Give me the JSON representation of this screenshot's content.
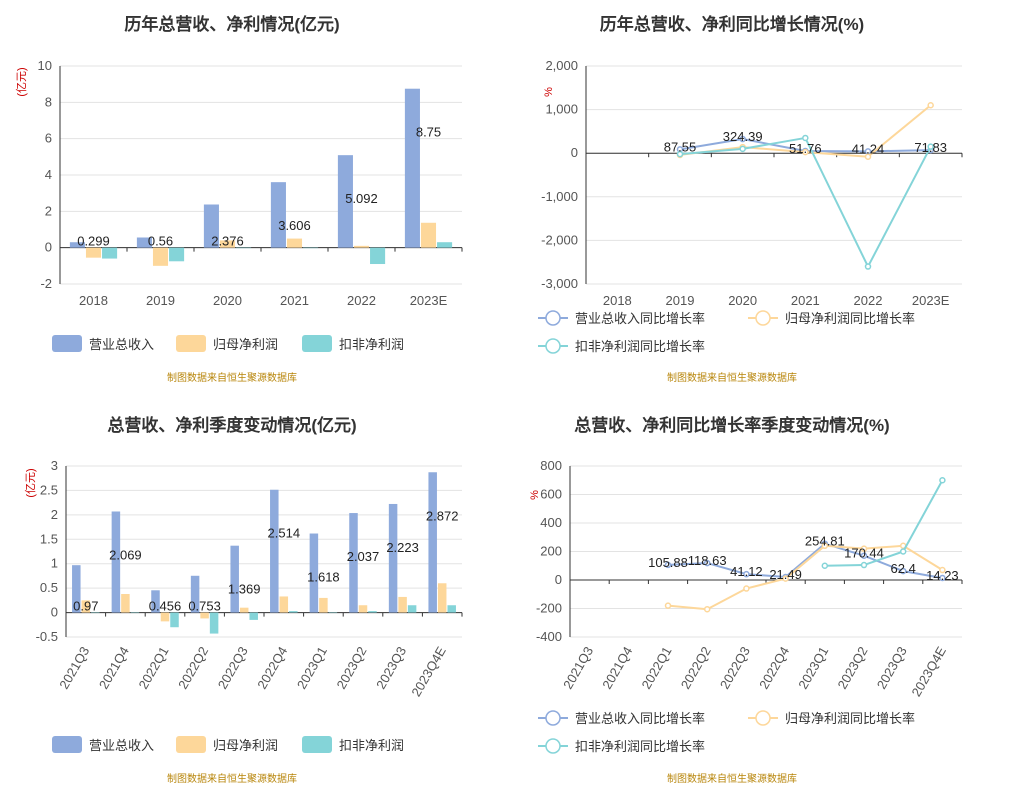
{
  "colors": {
    "revenue": "#8eaadc",
    "parent": "#fdd79a",
    "nonrec": "#84d4d8",
    "grid": "#e3e3e3",
    "axis": "#333333",
    "unit": "#cc0000",
    "source": "#b8860b"
  },
  "chart_data": [
    {
      "type": "bar",
      "title": "历年总营收、净利情况(亿元)",
      "unit": "(亿元)",
      "categories": [
        "2018",
        "2019",
        "2020",
        "2021",
        "2022",
        "2023E"
      ],
      "series": [
        {
          "name": "营业总收入",
          "values": [
            0.299,
            0.56,
            2.376,
            3.606,
            5.092,
            8.75
          ]
        },
        {
          "name": "归母净利润",
          "values": [
            -0.55,
            -1.0,
            0.4,
            0.5,
            0.1,
            1.37
          ]
        },
        {
          "name": "扣非净利润",
          "values": [
            -0.6,
            -0.75,
            0.0,
            0.0,
            -0.9,
            0.3
          ]
        }
      ],
      "data_labels": [
        "0.299",
        "0.56",
        "2.376",
        "3.606",
        "5.092",
        "8.75"
      ],
      "ylim": [
        -2,
        10
      ],
      "yticks": [
        "-2",
        "0",
        "2",
        "4",
        "6",
        "8",
        "10"
      ],
      "grid": true,
      "legend": "bottom",
      "source": "制图数据来自恒生聚源数据库"
    },
    {
      "type": "line",
      "title": "历年总营收、净利同比增长情况(%)",
      "unit": "%",
      "categories": [
        "2018",
        "2019",
        "2020",
        "2021",
        "2022",
        "2023E"
      ],
      "series": [
        {
          "name": "营业总收入同比增长率",
          "values": [
            null,
            87.55,
            324.39,
            51.76,
            41.24,
            71.83
          ]
        },
        {
          "name": "归母净利润同比增长率",
          "values": [
            null,
            -40,
            140,
            25,
            -80,
            1100
          ]
        },
        {
          "name": "扣非净利润同比增长率",
          "values": [
            null,
            -20,
            100,
            350,
            -2600,
            150
          ]
        }
      ],
      "data_labels": [
        "",
        "87.55",
        "324.39",
        "51.76",
        "41.24",
        "71.83"
      ],
      "ylim": [
        -3000,
        2000
      ],
      "yticks": [
        "-3,000",
        "-2,000",
        "-1,000",
        "0",
        "1,000",
        "2,000"
      ],
      "grid": true,
      "legend": "bottom",
      "source": "制图数据来自恒生聚源数据库"
    },
    {
      "type": "bar",
      "title": "总营收、净利季度变动情况(亿元)",
      "unit": "(亿元)",
      "categories": [
        "2021Q3",
        "2021Q4",
        "2022Q1",
        "2022Q2",
        "2022Q3",
        "2022Q4",
        "2023Q1",
        "2023Q2",
        "2023Q3",
        "2023Q4E"
      ],
      "series": [
        {
          "name": "营业总收入",
          "values": [
            0.97,
            2.069,
            0.456,
            0.753,
            1.369,
            2.514,
            1.618,
            2.037,
            2.223,
            2.872
          ]
        },
        {
          "name": "归母净利润",
          "values": [
            0.25,
            0.38,
            -0.18,
            -0.12,
            0.1,
            0.33,
            0.3,
            0.15,
            0.32,
            0.6
          ]
        },
        {
          "name": "扣非净利润",
          "values": [
            0.0,
            0.0,
            -0.3,
            -0.43,
            -0.15,
            0.03,
            0.0,
            0.03,
            0.15,
            0.15
          ]
        }
      ],
      "data_labels": [
        "0.97",
        "2.069",
        "0.456",
        "0.753",
        "1.369",
        "2.514",
        "1.618",
        "2.037",
        "2.223",
        "2.872"
      ],
      "ylim": [
        -0.5,
        3
      ],
      "yticks": [
        "-0.5",
        "0",
        "0.5",
        "1",
        "1.5",
        "2",
        "2.5",
        "3"
      ],
      "grid": true,
      "legend": "bottom",
      "source": "制图数据来自恒生聚源数据库"
    },
    {
      "type": "line",
      "title": "总营收、净利同比增长率季度变动情况(%)",
      "unit": "%",
      "categories": [
        "2021Q3",
        "2021Q4",
        "2022Q1",
        "2022Q2",
        "2022Q3",
        "2022Q4",
        "2023Q1",
        "2023Q2",
        "2023Q3",
        "2023Q4E"
      ],
      "series": [
        {
          "name": "营业总收入同比增长率",
          "values": [
            null,
            null,
            105.88,
            118.63,
            41.12,
            21.49,
            254.81,
            170.44,
            62.4,
            14.23
          ]
        },
        {
          "name": "归母净利润同比增长率",
          "values": [
            null,
            null,
            -180,
            -205,
            -60,
            10,
            240,
            220,
            240,
            70
          ]
        },
        {
          "name": "扣非净利润同比增长率",
          "values": [
            null,
            null,
            null,
            null,
            null,
            null,
            100,
            105,
            200,
            700
          ]
        }
      ],
      "data_labels": [
        "",
        "",
        "105.88",
        "118.63",
        "41.12",
        "21.49",
        "254.81",
        "170.44",
        "62.4",
        "14.23"
      ],
      "ylim": [
        -400,
        800
      ],
      "yticks": [
        "-400",
        "-200",
        "0",
        "200",
        "400",
        "600",
        "800"
      ],
      "grid": true,
      "legend": "bottom",
      "source": "制图数据来自恒生聚源数据库"
    }
  ]
}
